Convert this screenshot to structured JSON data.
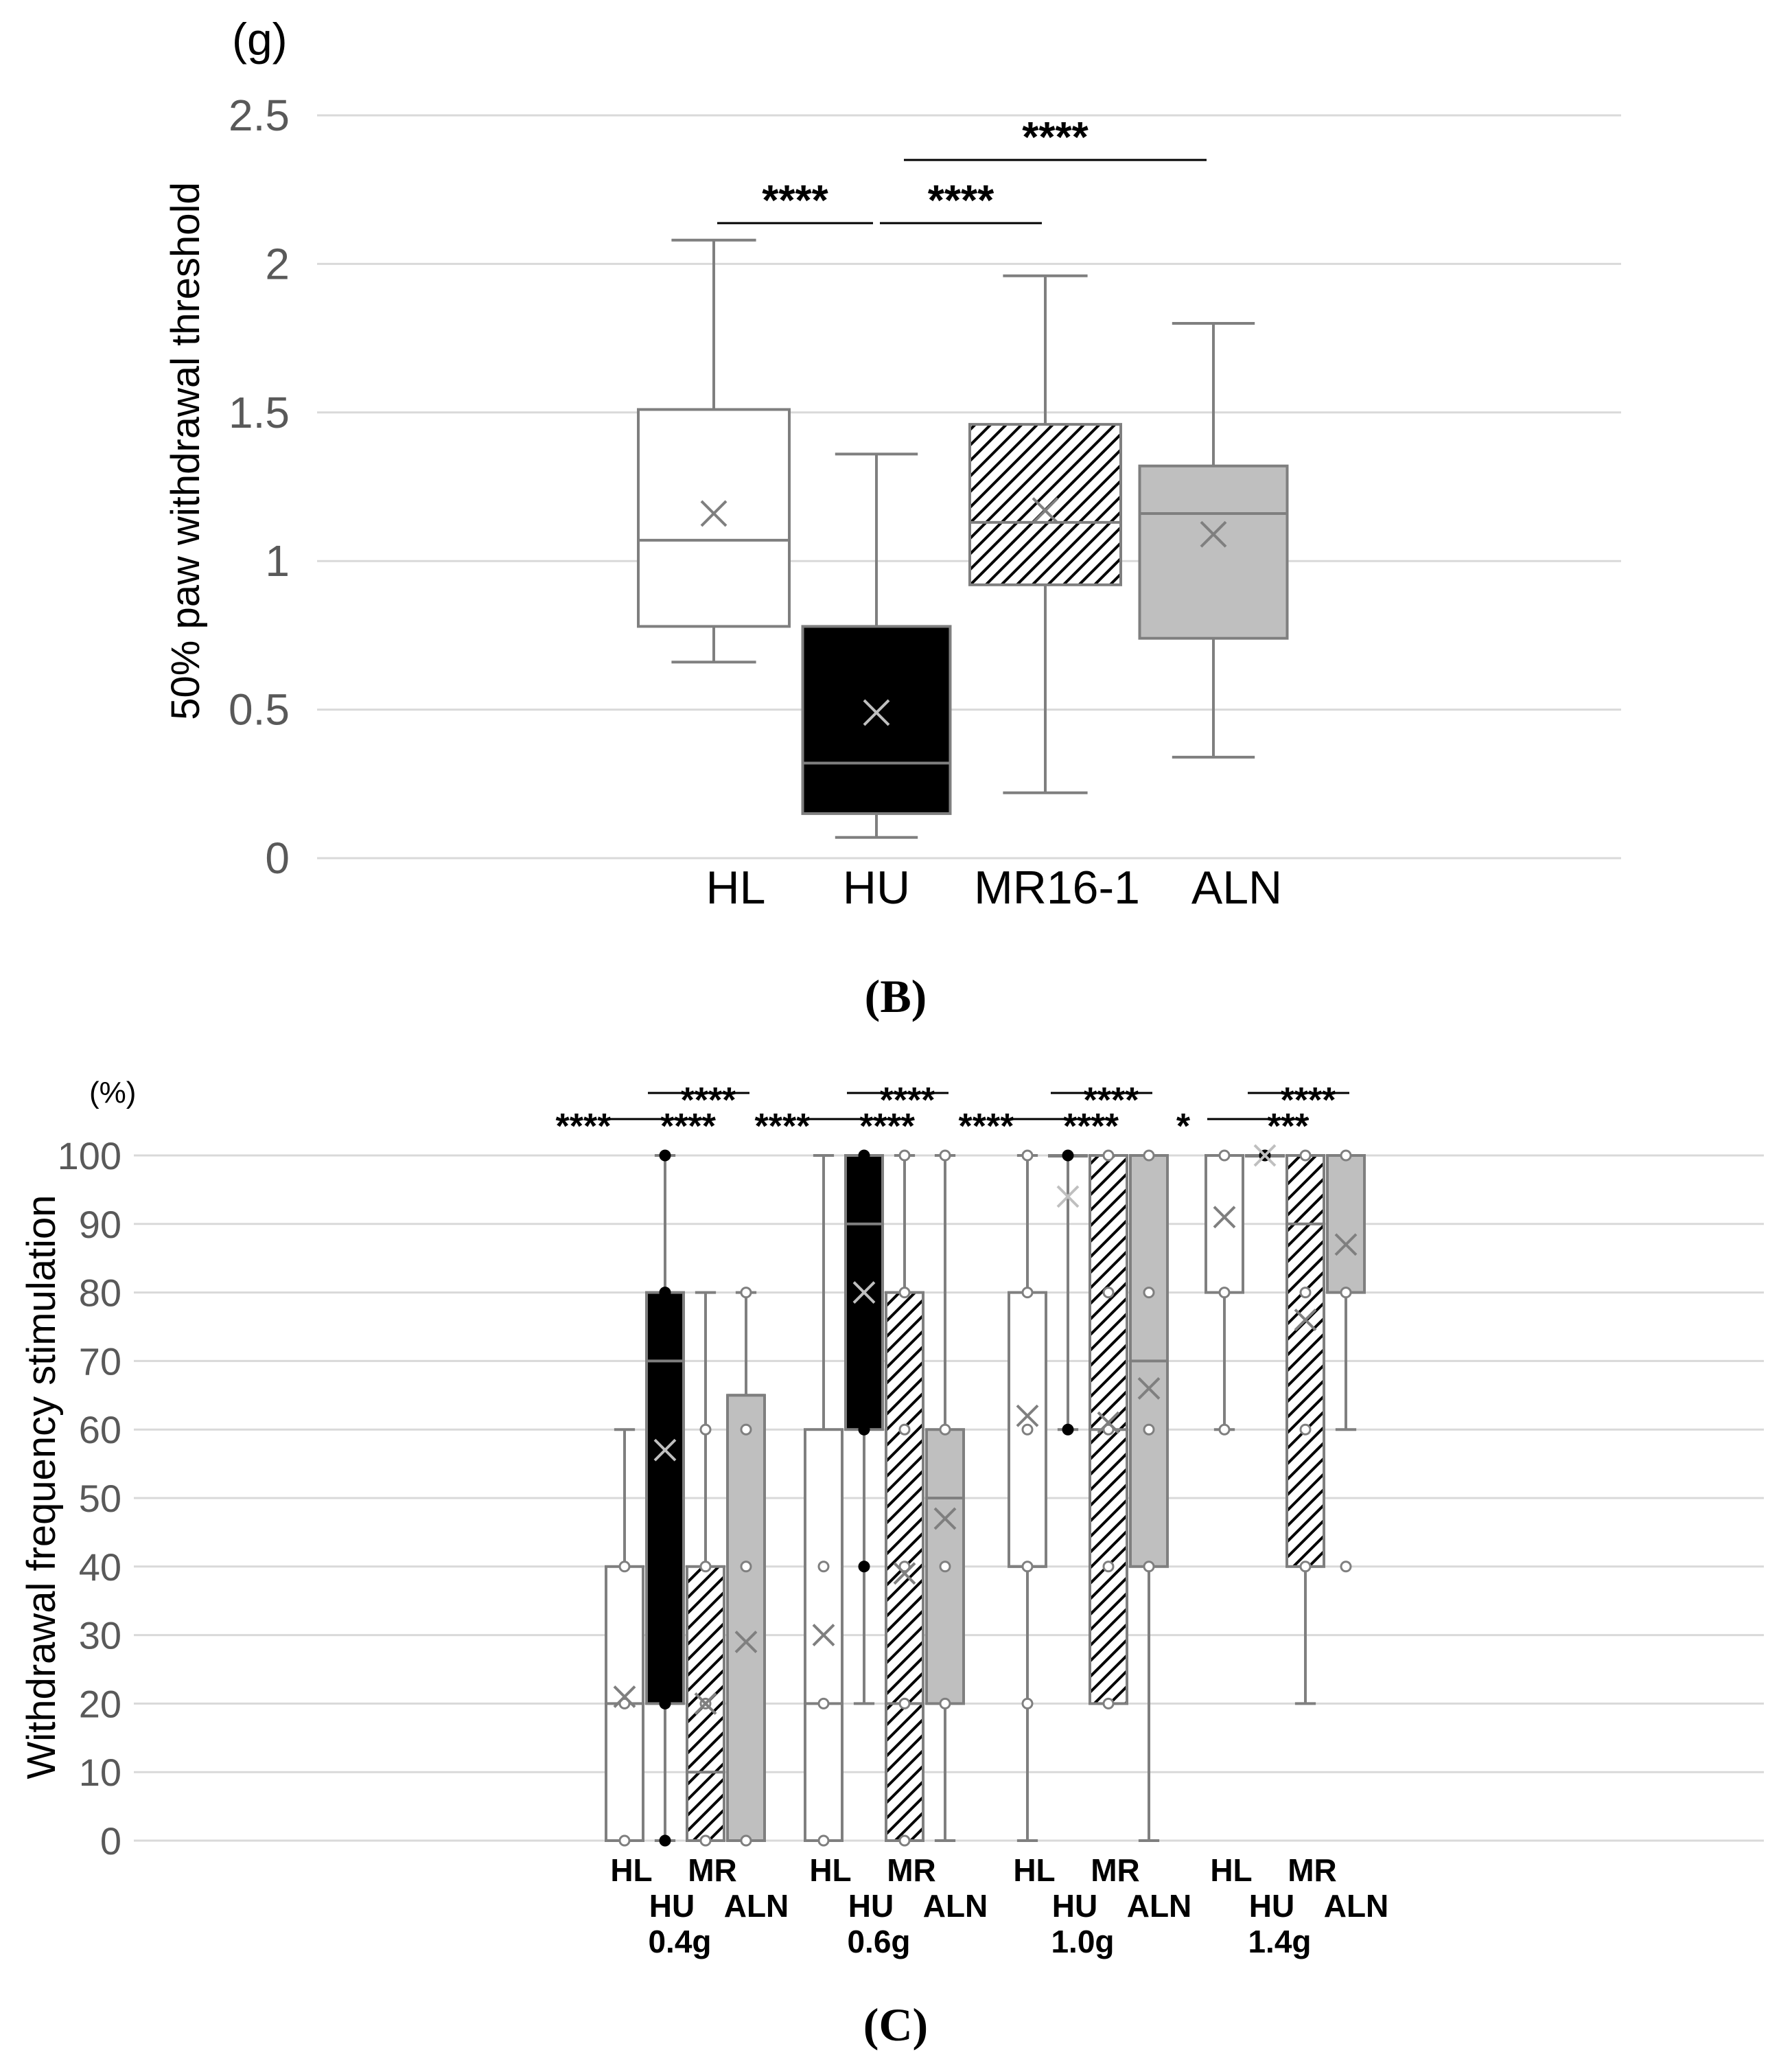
{
  "colors": {
    "grid": "#d9d9d9",
    "axis_text": "#595959",
    "box_edge": "#7f7f7f",
    "black_fill": "#000000",
    "gray_fill": "#bfbfbf",
    "white_fill": "#ffffff",
    "text": "#000000"
  },
  "chart_data": [
    {
      "type": "box",
      "panel_label": "(B)",
      "unit_label": "(g)",
      "ylabel": "50% paw withdrawal threshold",
      "ylim": [
        0,
        2.5
      ],
      "yticks": [
        0,
        0.5,
        1,
        1.5,
        2,
        2.5
      ],
      "ytick_labels": [
        "0",
        "0.5",
        "1",
        "1.5",
        "2",
        "2.5"
      ],
      "categories": [
        "HL",
        "HU",
        "MR16-1",
        "ALN"
      ],
      "boxes": [
        {
          "name": "HL",
          "fill": "white",
          "min": 0.66,
          "q1": 0.78,
          "median": 1.07,
          "q3": 1.51,
          "max": 2.08,
          "mean": 1.16
        },
        {
          "name": "HU",
          "fill": "black",
          "min": 0.07,
          "q1": 0.15,
          "median": 0.32,
          "q3": 0.78,
          "max": 1.36,
          "mean": 0.49
        },
        {
          "name": "MR16-1",
          "fill": "hatch",
          "min": 0.22,
          "q1": 0.92,
          "median": 1.13,
          "q3": 1.46,
          "max": 1.96,
          "mean": 1.17
        },
        {
          "name": "ALN",
          "fill": "gray",
          "min": 0.34,
          "q1": 0.74,
          "median": 1.16,
          "q3": 1.32,
          "max": 1.8,
          "mean": 1.09
        }
      ],
      "significance": [
        {
          "from": 0,
          "to": 1,
          "label": "****",
          "level": 1
        },
        {
          "from": 1,
          "to": 2,
          "label": "****",
          "level": 1
        },
        {
          "from": 1,
          "to": 3,
          "label": "****",
          "level": 2
        }
      ]
    },
    {
      "type": "box",
      "panel_label": "(C)",
      "unit_label": "(%)",
      "ylabel": "Withdrawal frequency stimulation",
      "ylim": [
        0,
        100
      ],
      "yticks": [
        0,
        10,
        20,
        30,
        40,
        50,
        60,
        70,
        80,
        90,
        100
      ],
      "ytick_labels": [
        "0",
        "10",
        "20",
        "30",
        "40",
        "50",
        "60",
        "70",
        "80",
        "90",
        "100"
      ],
      "group_labels": [
        "0.4g",
        "0.6g",
        "1.0g",
        "1.4g"
      ],
      "box_labels_top": [
        "HL",
        "MR"
      ],
      "box_labels_bottom": [
        "HU",
        "ALN"
      ],
      "groups": [
        {
          "name": "0.4g",
          "boxes": [
            {
              "name": "HL",
              "fill": "white",
              "min": 0,
              "q1": 0,
              "median": 20,
              "q3": 40,
              "max": 60,
              "mean": 21,
              "points": [
                0,
                20,
                40
              ]
            },
            {
              "name": "HU",
              "fill": "black",
              "min": 0,
              "q1": 20,
              "median": 70,
              "q3": 80,
              "max": 100,
              "mean": 57,
              "points": [
                0,
                20,
                40,
                60,
                80,
                100
              ]
            },
            {
              "name": "MR",
              "fill": "hatch",
              "min": 0,
              "q1": 0,
              "median": 10,
              "q3": 40,
              "max": 80,
              "mean": 20,
              "points": [
                0,
                20,
                40,
                60
              ]
            },
            {
              "name": "ALN",
              "fill": "gray",
              "min": 0,
              "q1": 0,
              "median": 65,
              "q3": 65,
              "max": 80,
              "mean": 29,
              "points": [
                0,
                40,
                60,
                80
              ]
            }
          ],
          "significance": [
            {
              "from": 0,
              "to": 1,
              "label": "****",
              "level": 1
            },
            {
              "from": 1,
              "to": 2,
              "label": "****",
              "level": 1
            },
            {
              "from": 1,
              "to": 3,
              "label": "****",
              "level": 2
            }
          ]
        },
        {
          "name": "0.6g",
          "boxes": [
            {
              "name": "HL",
              "fill": "white",
              "min": 0,
              "q1": 0,
              "median": 20,
              "q3": 60,
              "max": 100,
              "mean": 30,
              "points": [
                0,
                20,
                40
              ]
            },
            {
              "name": "HU",
              "fill": "black",
              "min": 20,
              "q1": 60,
              "median": 90,
              "q3": 100,
              "max": 100,
              "mean": 80,
              "points": [
                40,
                60,
                80,
                100
              ]
            },
            {
              "name": "MR",
              "fill": "hatch",
              "min": 0,
              "q1": 0,
              "median": 20,
              "q3": 80,
              "max": 100,
              "mean": 39,
              "points": [
                0,
                20,
                40,
                60,
                80,
                100
              ]
            },
            {
              "name": "ALN",
              "fill": "gray",
              "min": 0,
              "q1": 20,
              "median": 50,
              "q3": 60,
              "max": 100,
              "mean": 47,
              "points": [
                20,
                40,
                60,
                100
              ]
            }
          ],
          "significance": [
            {
              "from": 0,
              "to": 1,
              "label": "****",
              "level": 1
            },
            {
              "from": 1,
              "to": 2,
              "label": "****",
              "level": 1
            },
            {
              "from": 1,
              "to": 3,
              "label": "****",
              "level": 2
            }
          ]
        },
        {
          "name": "1.0g",
          "boxes": [
            {
              "name": "HL",
              "fill": "white",
              "min": 0,
              "q1": 40,
              "median": 40,
              "q3": 80,
              "max": 100,
              "mean": 62,
              "points": [
                20,
                40,
                60,
                80,
                100
              ]
            },
            {
              "name": "HU",
              "fill": "black",
              "min": 60,
              "q1": 100,
              "median": 100,
              "q3": 100,
              "max": 100,
              "mean": 94,
              "points": [
                60,
                100
              ]
            },
            {
              "name": "MR",
              "fill": "hatch",
              "min": 20,
              "q1": 20,
              "median": 60,
              "q3": 100,
              "max": 100,
              "mean": 61,
              "points": [
                20,
                40,
                60,
                80,
                100
              ]
            },
            {
              "name": "ALN",
              "fill": "gray",
              "min": 0,
              "q1": 40,
              "median": 70,
              "q3": 100,
              "max": 100,
              "mean": 66,
              "points": [
                40,
                60,
                80,
                100
              ]
            }
          ],
          "significance": [
            {
              "from": 0,
              "to": 1,
              "label": "****",
              "level": 1
            },
            {
              "from": 1,
              "to": 2,
              "label": "****",
              "level": 1
            },
            {
              "from": 1,
              "to": 3,
              "label": "****",
              "level": 2
            }
          ]
        },
        {
          "name": "1.4g",
          "boxes": [
            {
              "name": "HL",
              "fill": "white",
              "min": 60,
              "q1": 80,
              "median": 100,
              "q3": 100,
              "max": 100,
              "mean": 91,
              "points": [
                60,
                80,
                100
              ]
            },
            {
              "name": "HU",
              "fill": "black",
              "min": 100,
              "q1": 100,
              "median": 100,
              "q3": 100,
              "max": 100,
              "mean": 100,
              "points": [
                100
              ]
            },
            {
              "name": "MR",
              "fill": "hatch",
              "min": 20,
              "q1": 40,
              "median": 90,
              "q3": 100,
              "max": 100,
              "mean": 76,
              "points": [
                40,
                60,
                80,
                100
              ]
            },
            {
              "name": "ALN",
              "fill": "gray",
              "min": 60,
              "q1": 80,
              "median": 100,
              "q3": 100,
              "max": 100,
              "mean": 87,
              "points": [
                40,
                80,
                100
              ]
            }
          ],
          "significance": [
            {
              "from": 0,
              "to": 1,
              "label": "*",
              "level": 1
            },
            {
              "from": 1,
              "to": 2,
              "label": "***",
              "level": 1
            },
            {
              "from": 1,
              "to": 3,
              "label": "****",
              "level": 2
            }
          ]
        }
      ]
    }
  ]
}
